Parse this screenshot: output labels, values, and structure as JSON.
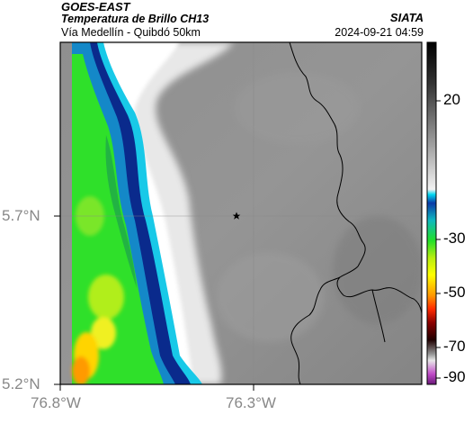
{
  "header": {
    "satellite": "GOES-EAST",
    "product": "Temperatura de Brillo CH13",
    "region": "Vía Medellín - Quibdó 50km",
    "organization": "SIATA",
    "timestamp": "2024-09-21 04:59"
  },
  "map": {
    "lon_labels": [
      "76.8°W",
      "76.3°W"
    ],
    "lat_labels": [
      "5.7°N",
      "5.2°N"
    ],
    "marker_icon": "star-icon"
  },
  "colorbar": {
    "labels": [
      "20",
      "-30",
      "-50",
      "-70",
      "-90"
    ]
  },
  "colors": {
    "cold_cloud_blue": "#0a2a8c",
    "cloud_green": "#2fe02a",
    "warm_surface_gray": "#8a8a8a",
    "frame": "#000000"
  }
}
